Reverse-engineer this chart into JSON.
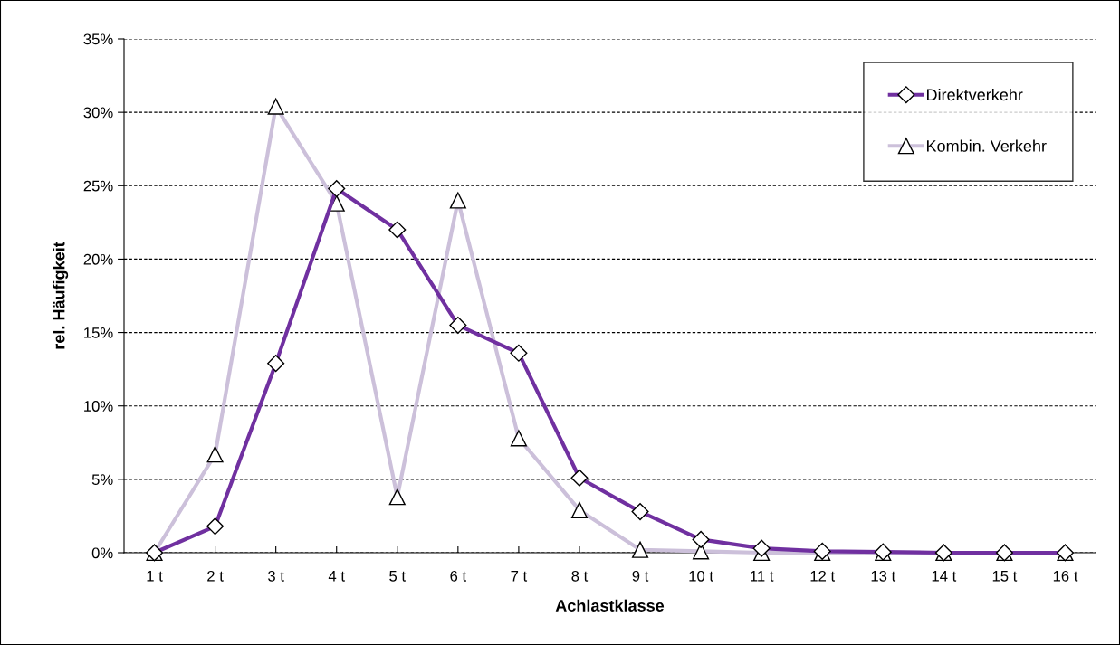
{
  "chart_data": {
    "type": "line",
    "xlabel": "Achlastklasse",
    "ylabel": "rel. Häufigkeit",
    "categories": [
      "1 t",
      "2 t",
      "3 t",
      "4 t",
      "5 t",
      "6 t",
      "7 t",
      "8 t",
      "9 t",
      "10 t",
      "11 t",
      "12 t",
      "13 t",
      "14 t",
      "15 t",
      "16 t"
    ],
    "series": [
      {
        "name": "Direktverkehr",
        "color": "#7030a0",
        "marker": "diamond",
        "values": [
          0,
          1.8,
          12.9,
          24.8,
          22.0,
          15.5,
          13.6,
          5.1,
          2.8,
          0.9,
          0.3,
          0.1,
          0.05,
          0,
          0,
          0
        ]
      },
      {
        "name": "Kombin. Verkehr",
        "color": "#ccc0da",
        "marker": "triangle",
        "values": [
          0,
          6.7,
          30.4,
          23.8,
          3.8,
          24.0,
          7.8,
          2.9,
          0.2,
          0.1,
          0,
          0,
          0,
          0,
          0,
          0
        ]
      }
    ],
    "ylim": [
      0,
      35
    ],
    "yticks": [
      {
        "value": 0,
        "label": "0%"
      },
      {
        "value": 5,
        "label": "5%"
      },
      {
        "value": 10,
        "label": "10%"
      },
      {
        "value": 15,
        "label": "15%"
      },
      {
        "value": 20,
        "label": "20%"
      },
      {
        "value": 25,
        "label": "25%"
      },
      {
        "value": 30,
        "label": "30%"
      },
      {
        "value": 35,
        "label": "35%"
      }
    ],
    "grid": "y",
    "legend": "top right",
    "line_style": "solid"
  }
}
